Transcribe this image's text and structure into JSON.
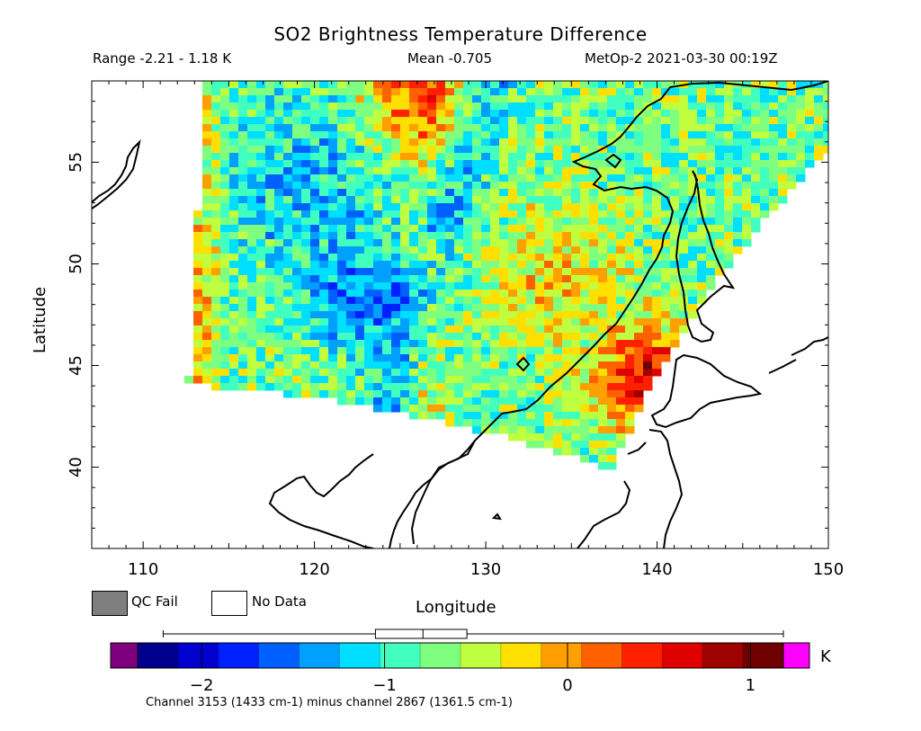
{
  "header": {
    "title": "SO2 Brightness Temperature Difference",
    "range": "Range -2.21 - 1.18 K",
    "mean": "Mean -0.705",
    "satellite_time": "MetOp-2 2021-03-30 00:19Z"
  },
  "map": {
    "x_label": "Longitude",
    "y_label": "Latitude",
    "lon_range": [
      107,
      150
    ],
    "lat_range": [
      36,
      59
    ],
    "lon_ticks": [
      "110",
      "120",
      "130",
      "140",
      "150"
    ],
    "lat_ticks": [
      "40",
      "45",
      "50",
      "55"
    ],
    "lon_tick_values": [
      110,
      120,
      130,
      140,
      150
    ],
    "lat_tick_values": [
      40,
      45,
      50,
      55
    ],
    "coastline_color": "#000000",
    "features": [
      "Yellow Sea",
      "Korean Peninsula",
      "Japan",
      "Sakhalin",
      "Sea of Okhotsk coast",
      "Lake Baikal region"
    ]
  },
  "legend": {
    "qc_fail": "QC Fail",
    "no_data": "No Data",
    "qc_fail_color": "#7f7f7f",
    "no_data_color": "#ffffff"
  },
  "colorbar": {
    "unit": "K",
    "min": -2.35,
    "max": 1.18,
    "tick_labels": [
      "−2",
      "−1",
      "0",
      "1"
    ],
    "tick_values": [
      -2,
      -1,
      0,
      1
    ],
    "low_cap_color": "#7f007f",
    "high_cap_color": "#ff00ff",
    "colors": [
      "#00008f",
      "#0000cf",
      "#0020ff",
      "#0060ff",
      "#00a0ff",
      "#00dfff",
      "#40ffbf",
      "#7fff7f",
      "#bfff40",
      "#ffdf00",
      "#ffa000",
      "#ff6000",
      "#ff2000",
      "#df0000",
      "#9f0000",
      "#6f0000"
    ],
    "boxplot": {
      "whisker_low": -2.21,
      "q1": -1.05,
      "median": -0.79,
      "q3": -0.55,
      "whisker_high": 1.18
    }
  },
  "footnote": "Channel 3153 (1433 cm-1) minus channel 2867 (1361.5 cm-1)"
}
